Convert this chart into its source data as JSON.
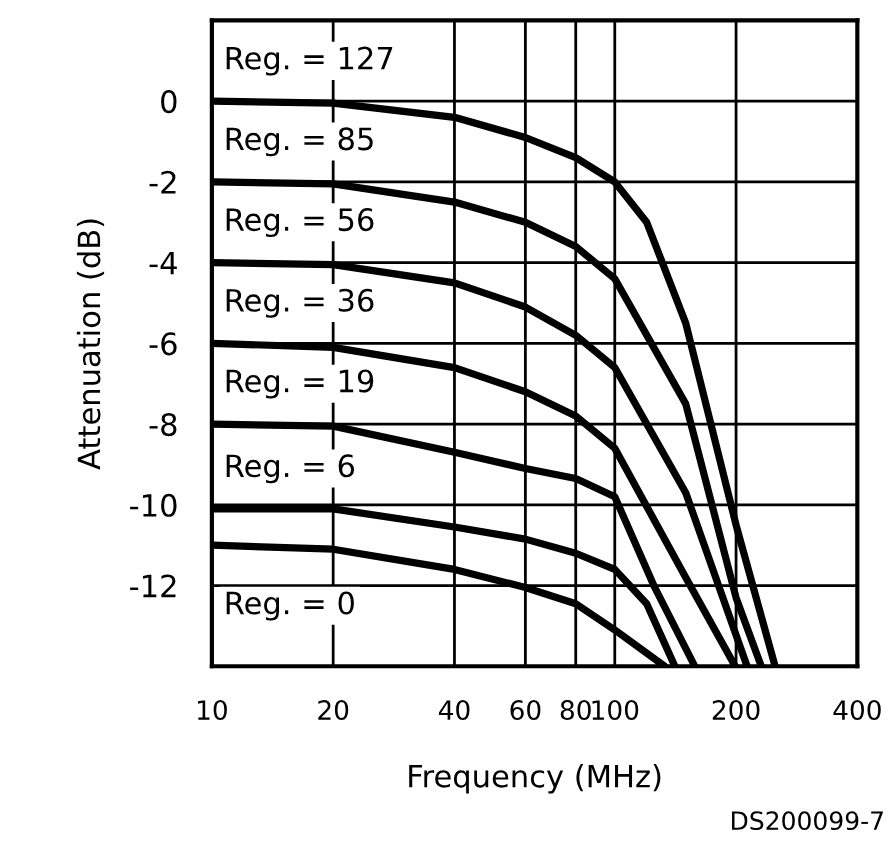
{
  "chart_data": {
    "type": "line",
    "xlabel": "Frequency (MHz)",
    "ylabel": "Attenuation (dB)",
    "log": "x",
    "xlim": [
      10,
      400
    ],
    "ylim": [
      -14,
      2
    ],
    "xticks": [
      10,
      20,
      40,
      60,
      80,
      100,
      200,
      400
    ],
    "yticks": [
      -12,
      -10,
      -8,
      -6,
      -4,
      -2,
      0
    ],
    "grid": true,
    "legend": false,
    "marker": "none",
    "line_style": "solid",
    "series": [
      {
        "name": "Reg. = 127",
        "color": "#000000",
        "x": [
          10,
          20,
          40,
          60,
          80,
          100,
          120,
          150,
          200,
          250
        ],
        "values": [
          0,
          -0.05,
          -0.4,
          -0.9,
          -1.4,
          -2.0,
          -3.0,
          -5.5,
          -10.5,
          -14
        ]
      },
      {
        "name": "Reg. = 85",
        "color": "#000000",
        "x": [
          10,
          20,
          40,
          60,
          80,
          100,
          150,
          200,
          231
        ],
        "values": [
          -2,
          -2.05,
          -2.5,
          -3.0,
          -3.6,
          -4.4,
          -7.5,
          -12.3,
          -14
        ]
      },
      {
        "name": "Reg. = 56",
        "color": "#000000",
        "x": [
          10,
          20,
          40,
          60,
          80,
          100,
          150,
          213
        ],
        "values": [
          -4,
          -4.05,
          -4.5,
          -5.1,
          -5.8,
          -6.6,
          -9.7,
          -14
        ]
      },
      {
        "name": "Reg. = 36",
        "color": "#000000",
        "x": [
          10,
          20,
          40,
          60,
          80,
          100,
          150,
          199
        ],
        "values": [
          -6,
          -6.1,
          -6.6,
          -7.2,
          -7.8,
          -8.6,
          -11.8,
          -14
        ]
      },
      {
        "name": "Reg. = 19",
        "color": "#000000",
        "x": [
          10,
          20,
          40,
          60,
          80,
          100,
          125,
          158
        ],
        "values": [
          -8,
          -8.05,
          -8.7,
          -9.1,
          -9.35,
          -9.8,
          -12,
          -14
        ]
      },
      {
        "name": "Reg. = 6",
        "color": "#000000",
        "x": [
          10,
          20,
          40,
          60,
          80,
          100,
          120,
          141
        ],
        "values": [
          -10.1,
          -10.1,
          -10.55,
          -10.85,
          -11.2,
          -11.6,
          -12.45,
          -14
        ]
      },
      {
        "name": "Reg. = 0",
        "color": "#000000",
        "x": [
          10,
          20,
          40,
          60,
          80,
          100,
          133
        ],
        "values": [
          -11,
          -11.1,
          -11.6,
          -12.05,
          -12.45,
          -13.1,
          -14
        ]
      }
    ],
    "annotations": [
      "DS200099-7"
    ]
  }
}
